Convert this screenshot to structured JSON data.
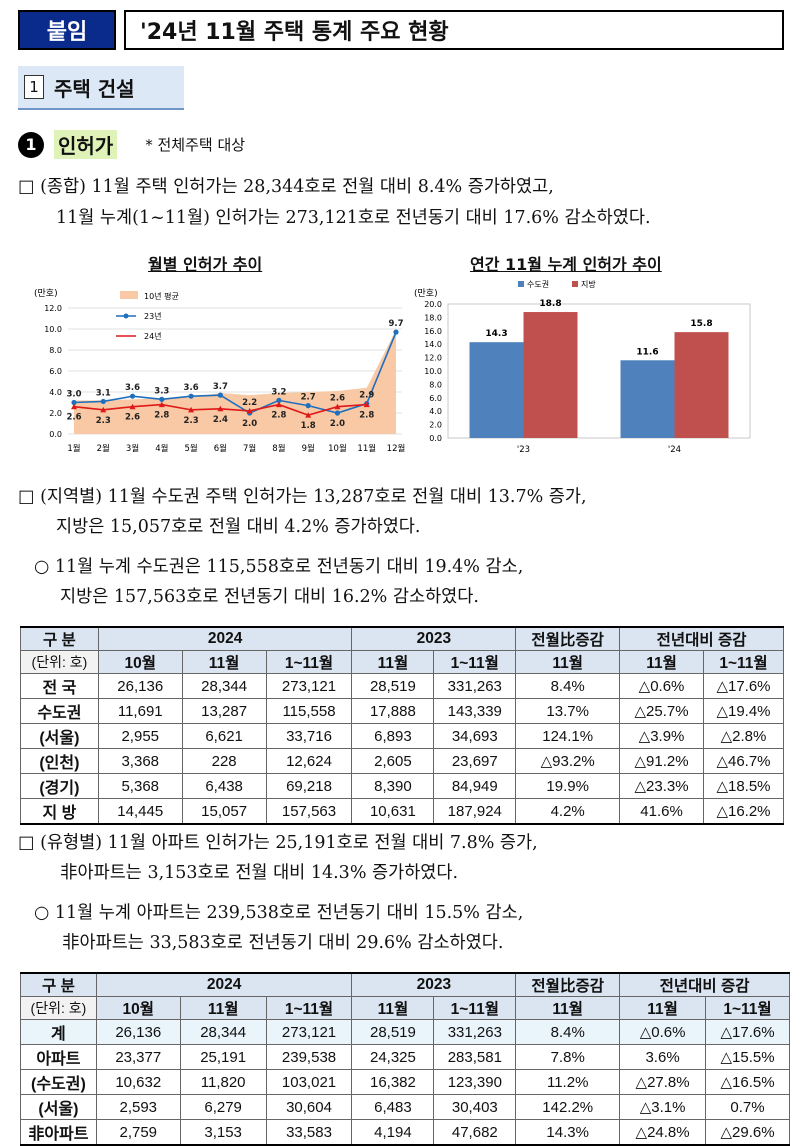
{
  "header": {
    "tag": "붙임",
    "title": "'24년 11월 주택 통계 주요 현황"
  },
  "section": {
    "number": "1",
    "title": "주택 건설"
  },
  "subsection": {
    "bullet": "1",
    "title": "인허가",
    "note": "* 전체주택 대상"
  },
  "para1": {
    "line1": "□ (종합) 11월 주택 인허가는 28,344호로 전월 대비 8.4% 증가하였고,",
    "line2": "11월 누계(1~11월) 인허가는 273,121호로 전년동기 대비 17.6% 감소하였다."
  },
  "para2": {
    "line1": "□ (지역별) 11월 수도권 주택 인허가는 13,287호로 전월 대비 13.7% 증가,",
    "line2": "지방은 15,057호로 전월 대비 4.2% 증가하였다.",
    "sub1": "○ 11월 누계 수도권은 115,558호로 전년동기 대비 19.4% 감소,",
    "sub2": "지방은 157,563호로 전년동기 대비 16.2% 감소하였다."
  },
  "para3": {
    "line1": "□ (유형별) 11월 아파트 인허가는 25,191호로 전월 대비 7.8% 증가,",
    "line2": "非아파트는 3,153호로 전월 대비 14.3% 증가하였다.",
    "sub1": "○ 11월 누계 아파트는 239,538호로 전년동기 대비 15.5% 감소,",
    "sub2": "非아파트는 33,583호로 전년동기 대비 29.6% 감소하였다."
  },
  "chart_data": [
    {
      "type": "line",
      "title": "월별 인허가 추이",
      "ylabel": "(만호)",
      "ylim": [
        0,
        12
      ],
      "yticks": [
        "0.0",
        "2.0",
        "4.0",
        "6.0",
        "8.0",
        "10.0",
        "12.0"
      ],
      "categories": [
        "1월",
        "2월",
        "3월",
        "4월",
        "5월",
        "6월",
        "7월",
        "8월",
        "9월",
        "10월",
        "11월",
        "12월"
      ],
      "series": [
        {
          "name": "10년 평균",
          "kind": "area",
          "color": "#f8c9a4",
          "values": [
            3.2,
            3.2,
            3.3,
            3.4,
            3.5,
            3.9,
            3.7,
            3.9,
            4.0,
            4.1,
            4.4,
            9.9
          ]
        },
        {
          "name": "23년",
          "kind": "line",
          "color": "#1f6fbf",
          "values": [
            3.0,
            3.1,
            3.6,
            3.3,
            3.6,
            3.7,
            2.0,
            3.2,
            2.7,
            2.0,
            2.9,
            9.7
          ],
          "labels": [
            "3.0",
            "3.1",
            "3.6",
            "3.3",
            "3.6",
            "3.7",
            "2.0",
            "3.2",
            "2.7",
            "2.0",
            "2.9",
            "9.7"
          ]
        },
        {
          "name": "24년",
          "kind": "line",
          "color": "#e01818",
          "values": [
            2.6,
            2.3,
            2.6,
            2.8,
            2.3,
            2.4,
            2.2,
            2.8,
            1.8,
            2.6,
            2.8,
            null
          ],
          "labels": [
            "2.6",
            "2.3",
            "2.6",
            "2.8",
            "2.3",
            "2.4",
            "2.2",
            "2.8",
            "1.8",
            "2.6",
            "2.8",
            ""
          ]
        }
      ],
      "colors": {
        "grid": "#d9d9d9"
      }
    },
    {
      "type": "bar",
      "title": "연간 11월 누계 인허가 추이",
      "ylabel": "(만호)",
      "ylim": [
        0,
        20
      ],
      "yticks": [
        "0.0",
        "2.0",
        "4.0",
        "6.0",
        "8.0",
        "10.0",
        "12.0",
        "14.0",
        "16.0",
        "18.0",
        "20.0"
      ],
      "categories": [
        "'23",
        "'24"
      ],
      "series": [
        {
          "name": "수도권",
          "color": "#4f81bd",
          "values": [
            14.3,
            11.6
          ],
          "labels": [
            "14.3",
            "11.6"
          ]
        },
        {
          "name": "지방",
          "color": "#c0504d",
          "values": [
            18.8,
            15.8
          ],
          "labels": [
            "18.8",
            "15.8"
          ]
        }
      ]
    }
  ],
  "table1": {
    "h_category": "구 분",
    "h_unit": "(단위: 호)",
    "h_2024": "2024",
    "h_2023": "2023",
    "h_mom": "전월比증감",
    "h_yoy": "전년대비 증감",
    "h_oct": "10월",
    "h_nov": "11월",
    "h_cum": "1~11월",
    "rows": [
      {
        "label": "전 국",
        "v": [
          "26,136",
          "28,344",
          "273,121",
          "28,519",
          "331,263",
          "8.4%",
          "△0.6%",
          "△17.6%"
        ]
      },
      {
        "label": "수도권",
        "v": [
          "11,691",
          "13,287",
          "115,558",
          "17,888",
          "143,339",
          "13.7%",
          "△25.7%",
          "△19.4%"
        ]
      },
      {
        "label": "(서울)",
        "v": [
          "2,955",
          "6,621",
          "33,716",
          "6,893",
          "34,693",
          "124.1%",
          "△3.9%",
          "△2.8%"
        ]
      },
      {
        "label": "(인천)",
        "v": [
          "3,368",
          "228",
          "12,624",
          "2,605",
          "23,697",
          "△93.2%",
          "△91.2%",
          "△46.7%"
        ]
      },
      {
        "label": "(경기)",
        "v": [
          "5,368",
          "6,438",
          "69,218",
          "8,390",
          "84,949",
          "19.9%",
          "△23.3%",
          "△18.5%"
        ]
      },
      {
        "label": "지 방",
        "v": [
          "14,445",
          "15,057",
          "157,563",
          "10,631",
          "187,924",
          "4.2%",
          "41.6%",
          "△16.2%"
        ]
      }
    ]
  },
  "table2": {
    "h_category": "구 분",
    "h_unit": "(단위: 호)",
    "h_2024": "2024",
    "h_2023": "2023",
    "h_mom": "전월比증감",
    "h_yoy": "전년대비 증감",
    "h_oct": "10월",
    "h_nov": "11월",
    "h_cum": "1~11월",
    "rows": [
      {
        "label": "계",
        "v": [
          "26,136",
          "28,344",
          "273,121",
          "28,519",
          "331,263",
          "8.4%",
          "△0.6%",
          "△17.6%"
        ]
      },
      {
        "label": "아파트",
        "v": [
          "23,377",
          "25,191",
          "239,538",
          "24,325",
          "283,581",
          "7.8%",
          "3.6%",
          "△15.5%"
        ]
      },
      {
        "label": "(수도권)",
        "v": [
          "10,632",
          "11,820",
          "103,021",
          "16,382",
          "123,390",
          "11.2%",
          "△27.8%",
          "△16.5%"
        ]
      },
      {
        "label": "(서울)",
        "v": [
          "2,593",
          "6,279",
          "30,604",
          "6,483",
          "30,403",
          "142.2%",
          "△3.1%",
          "0.7%"
        ]
      },
      {
        "label": "非아파트",
        "v": [
          "2,759",
          "3,153",
          "33,583",
          "4,194",
          "47,682",
          "14.3%",
          "△24.8%",
          "△29.6%"
        ]
      }
    ]
  }
}
